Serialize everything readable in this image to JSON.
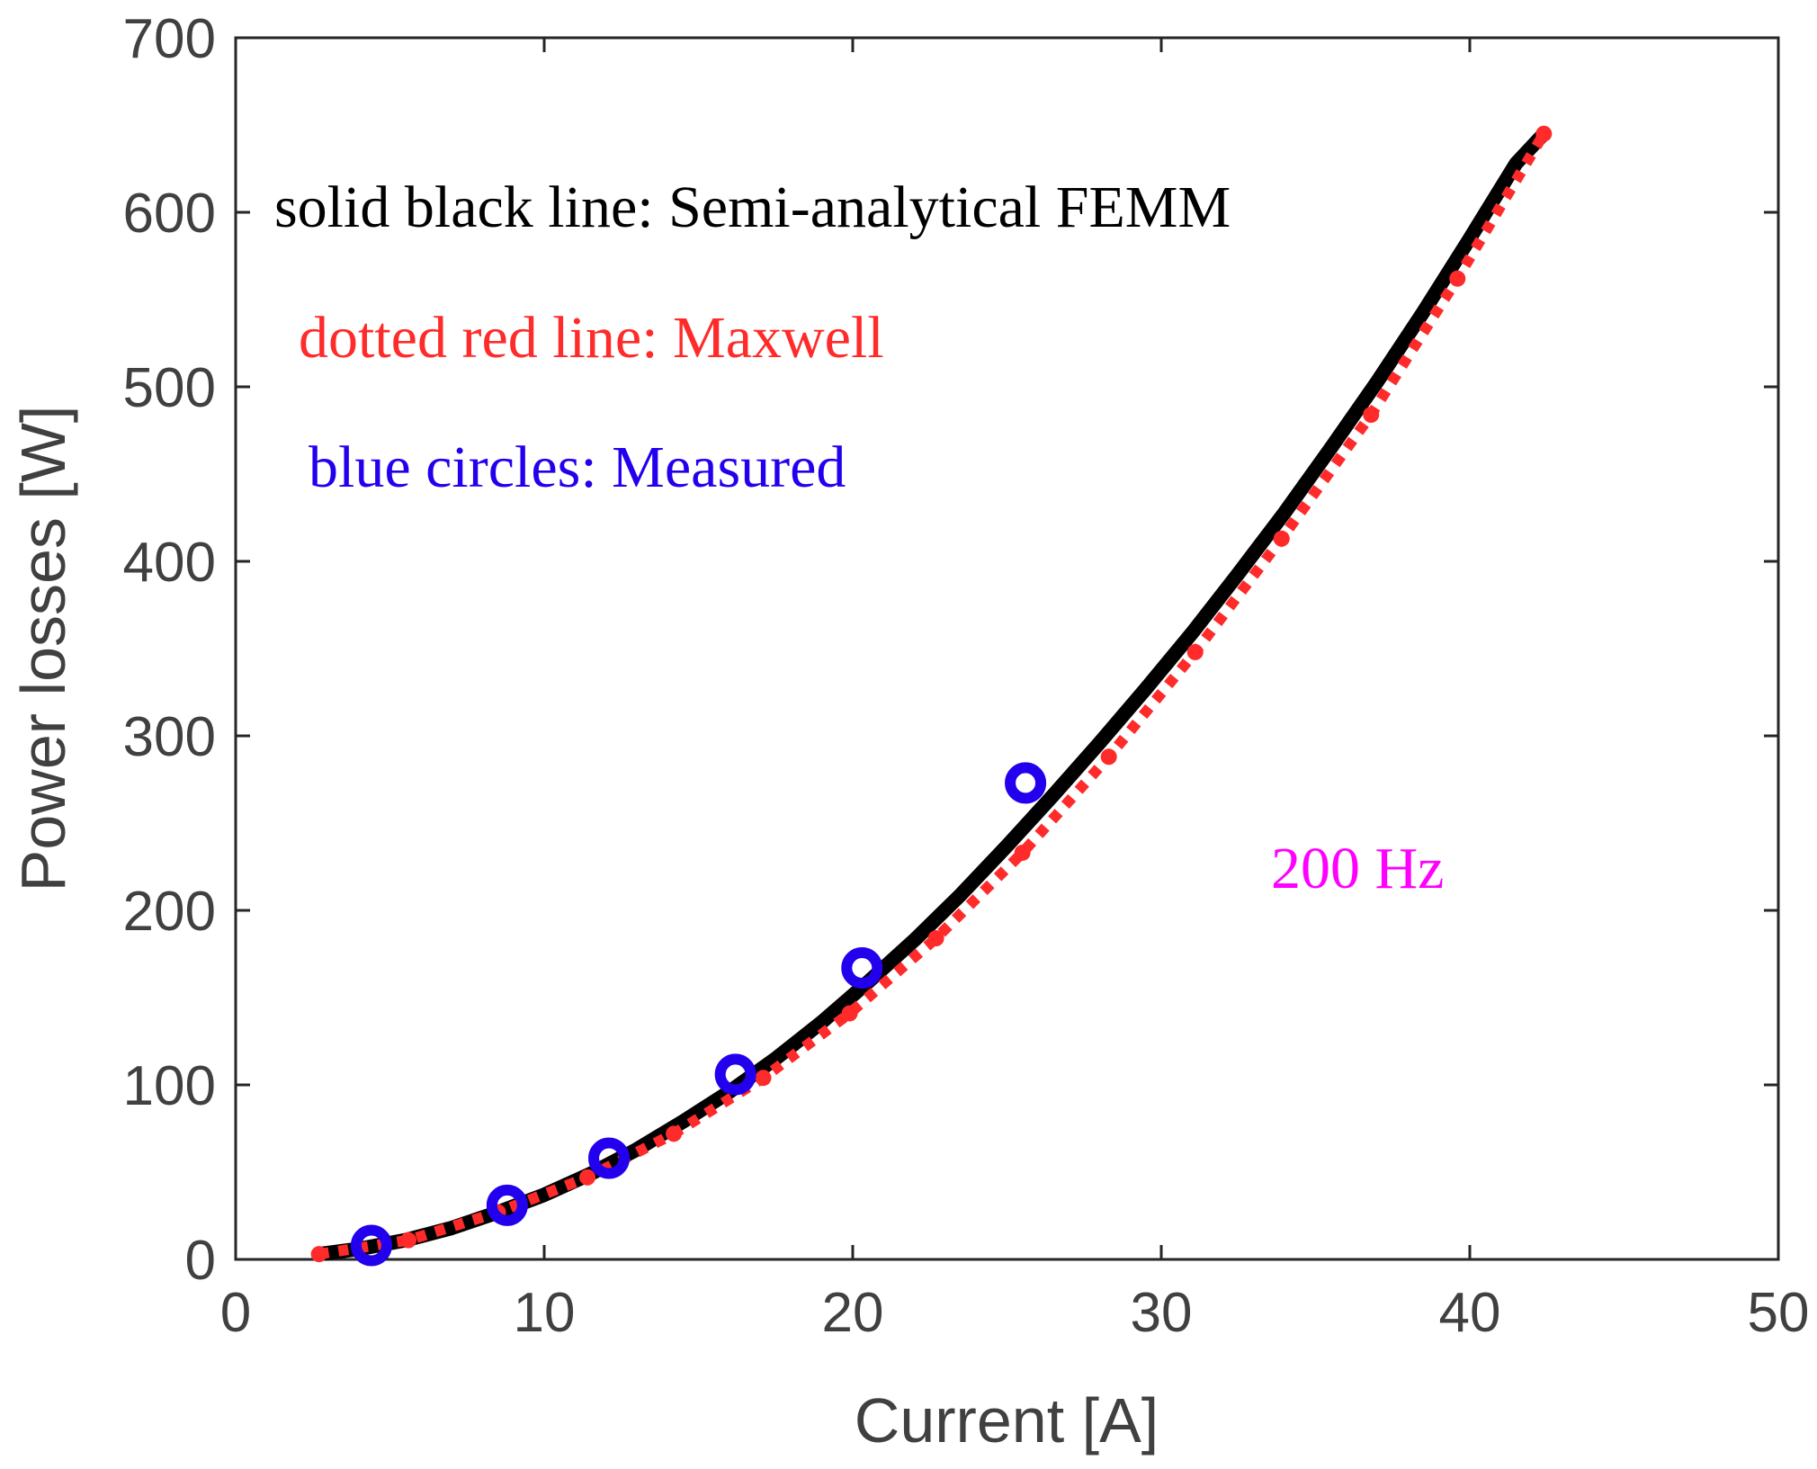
{
  "chart_data": {
    "type": "line",
    "title": "",
    "xlabel": "Current [A]",
    "ylabel": "Power losses [W]",
    "xlim": [
      0,
      50
    ],
    "ylim": [
      0,
      700
    ],
    "xticks": [
      0,
      10,
      20,
      30,
      40,
      50
    ],
    "yticks": [
      0,
      100,
      200,
      300,
      400,
      500,
      600,
      700
    ],
    "grid": false,
    "series": [
      {
        "name": "Semi-analytical FEMM",
        "style": "solid",
        "color": "#000000",
        "x": [
          2.7,
          4.0,
          5.5,
          7.0,
          8.5,
          10.0,
          11.5,
          13.0,
          14.5,
          16.0,
          17.5,
          19.0,
          20.5,
          22.0,
          23.5,
          25.0,
          26.5,
          28.0,
          29.5,
          31.0,
          32.5,
          34.0,
          35.5,
          37.0,
          38.5,
          40.0,
          41.5,
          42.4
        ],
        "y": [
          3,
          6,
          11,
          18,
          27,
          37,
          49,
          63,
          79,
          96,
          115,
          136,
          159,
          183,
          209,
          237,
          266,
          296,
          327,
          359,
          393,
          428,
          465,
          503,
          543,
          585,
          628,
          645
        ]
      },
      {
        "name": "Maxwell",
        "style": "dotted",
        "color": "#ff2a2a",
        "x": [
          2.7,
          5.6,
          8.5,
          11.4,
          14.2,
          17.1,
          19.9,
          22.7,
          25.5,
          28.3,
          31.1,
          33.9,
          36.8,
          39.6,
          42.4
        ],
        "y": [
          3,
          11,
          27,
          47,
          72,
          104,
          141,
          184,
          233,
          288,
          348,
          413,
          484,
          562,
          645
        ]
      },
      {
        "name": "Measured",
        "style": "circles",
        "color": "#2200ee",
        "x": [
          4.4,
          8.8,
          12.1,
          16.2,
          20.3,
          25.6
        ],
        "y": [
          8,
          31,
          58,
          106,
          167,
          273
        ]
      }
    ],
    "annotations": [
      {
        "text": "solid black line: Semi-analytical FEMM",
        "color": "#000000"
      },
      {
        "text": "dotted red line: Maxwell",
        "color": "#ff2a2a"
      },
      {
        "text": "blue circles: Measured",
        "color": "#2200ee"
      },
      {
        "text": "200 Hz",
        "color": "#ff00ff"
      }
    ]
  }
}
